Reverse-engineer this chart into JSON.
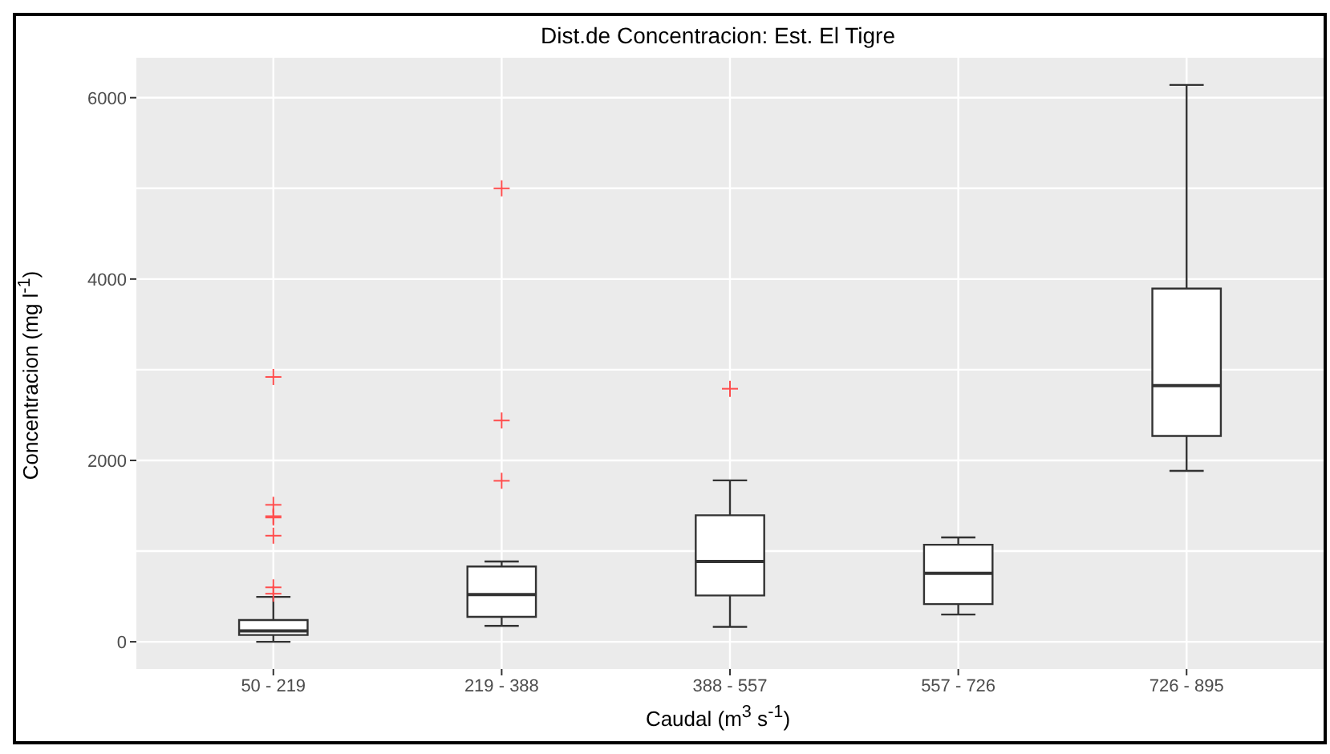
{
  "chart_data": {
    "type": "box",
    "title": "Dist.de Concentracion: Est. El Tigre",
    "xlabel": "Caudal (m$^{3}$ s$^{-1}$)",
    "ylabel": "Concentracion (mg l$^{-1}$)",
    "categories": [
      "50 - 219",
      "219 - 388",
      "388 - 557",
      "557 - 726",
      "726 - 895"
    ],
    "series": [
      {
        "color": "#333333",
        "boxes": [
          {
            "low": 0,
            "q1": 75,
            "median": 120,
            "q3": 240,
            "high": 495,
            "outliers": [
              530,
              600,
              1170,
              1370,
              1385,
              1510,
              2920
            ]
          },
          {
            "low": 175,
            "q1": 275,
            "median": 520,
            "q3": 830,
            "high": 885,
            "outliers": [
              1775,
              2440,
              5000
            ]
          },
          {
            "low": 165,
            "q1": 510,
            "median": 885,
            "q3": 1395,
            "high": 1780,
            "outliers": [
              2790
            ]
          },
          {
            "low": 300,
            "q1": 415,
            "median": 755,
            "q3": 1070,
            "high": 1150
          },
          {
            "low": 1885,
            "q1": 2270,
            "median": 2825,
            "q3": 3895,
            "high": 6140
          }
        ]
      }
    ],
    "ylim": [
      -300,
      6440
    ],
    "yticks": [
      0,
      2000,
      4000,
      6000
    ],
    "grid": true,
    "marker": "cross"
  }
}
